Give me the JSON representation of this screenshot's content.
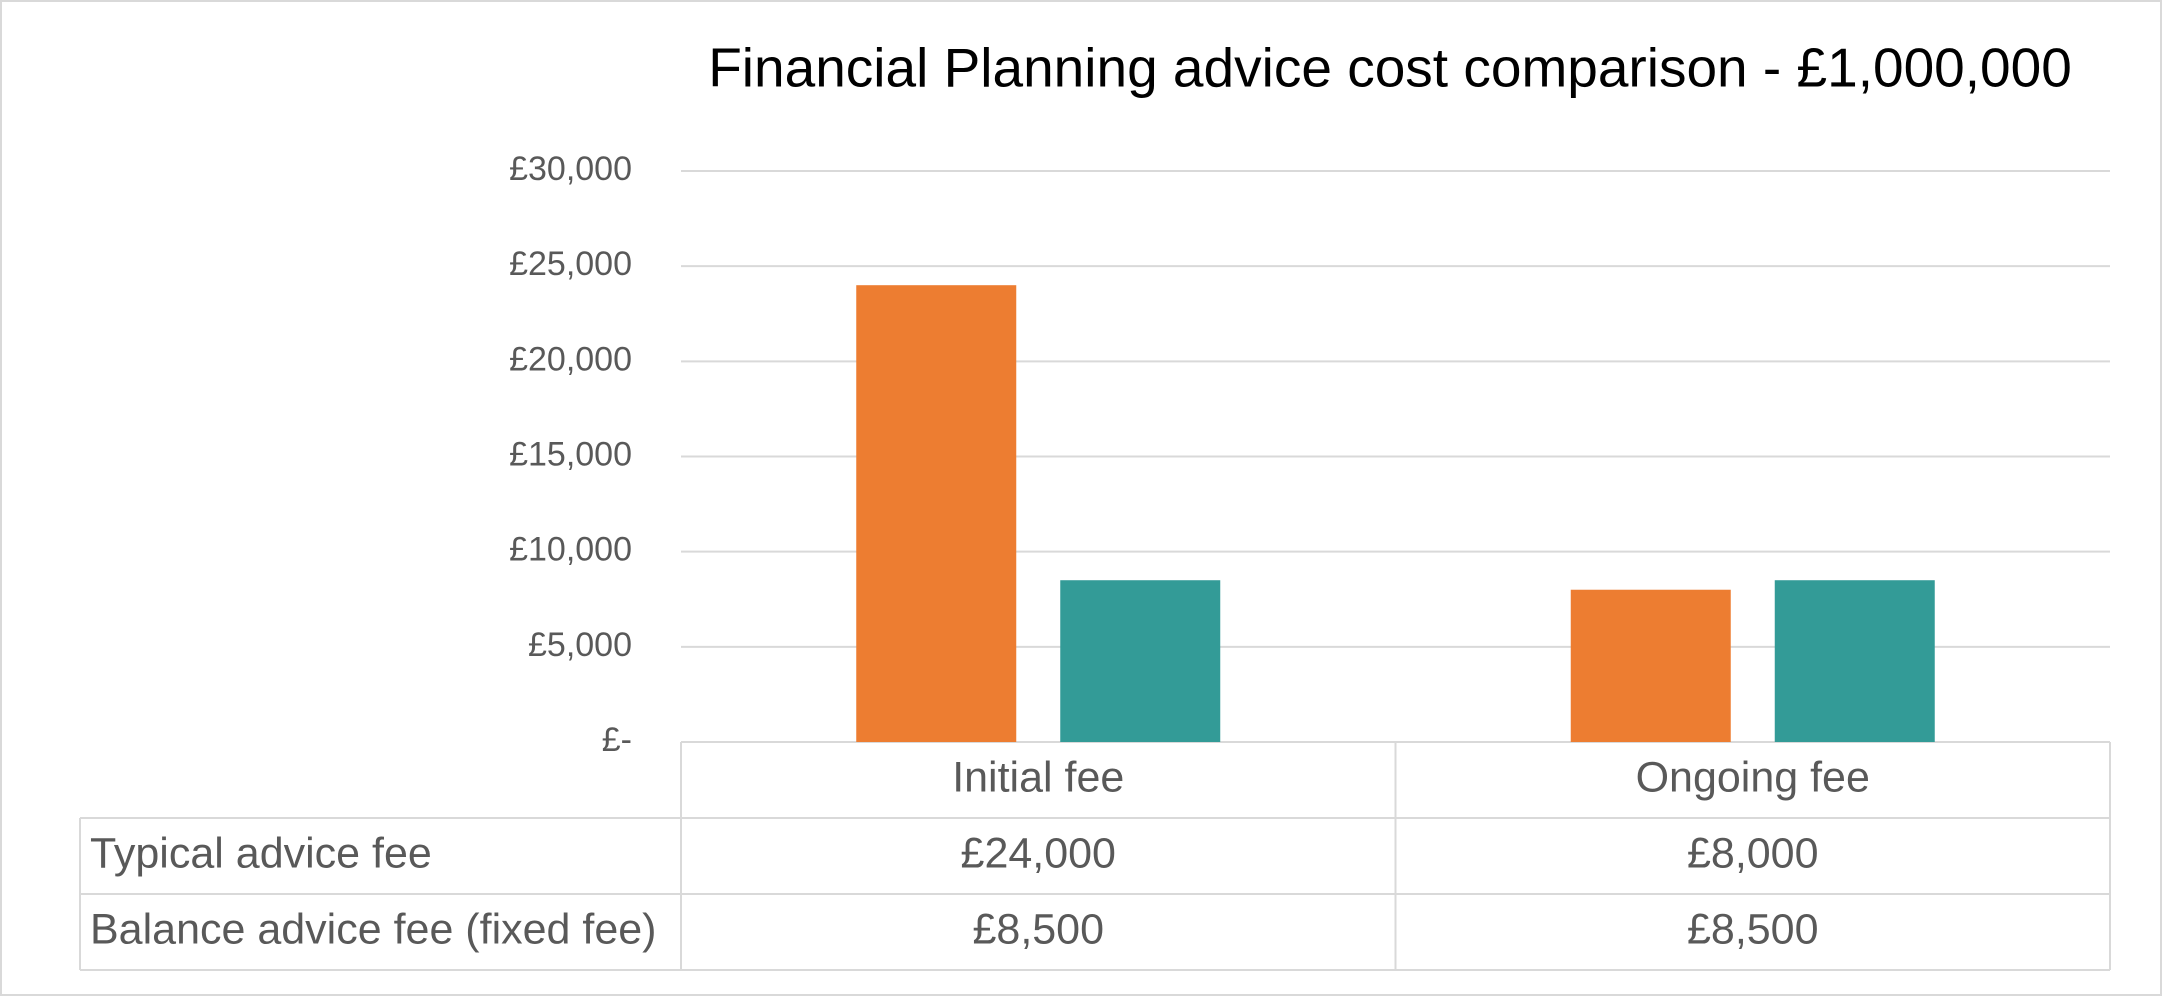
{
  "chart_data": {
    "type": "bar",
    "title": "Financial Planning advice cost comparison - £1,000,000",
    "categories": [
      "Initial fee",
      "Ongoing fee"
    ],
    "series": [
      {
        "name": "Typical advice fee",
        "color": "#ed7d31",
        "values": [
          24000,
          8000
        ],
        "value_labels": [
          "£24,000",
          "£8,000"
        ]
      },
      {
        "name": "Balance advice fee (fixed fee)",
        "color": "#339b97",
        "values": [
          8500,
          8500
        ],
        "value_labels": [
          "£8,500",
          "£8,500"
        ]
      }
    ],
    "ylim": [
      0,
      30000
    ],
    "yticks": [
      {
        "value": 0,
        "label": "£-"
      },
      {
        "value": 5000,
        "label": "£5,000"
      },
      {
        "value": 10000,
        "label": "£10,000"
      },
      {
        "value": 15000,
        "label": "£15,000"
      },
      {
        "value": 20000,
        "label": "£20,000"
      },
      {
        "value": 25000,
        "label": "£25,000"
      },
      {
        "value": 30000,
        "label": "£30,000"
      }
    ],
    "grid": true
  }
}
